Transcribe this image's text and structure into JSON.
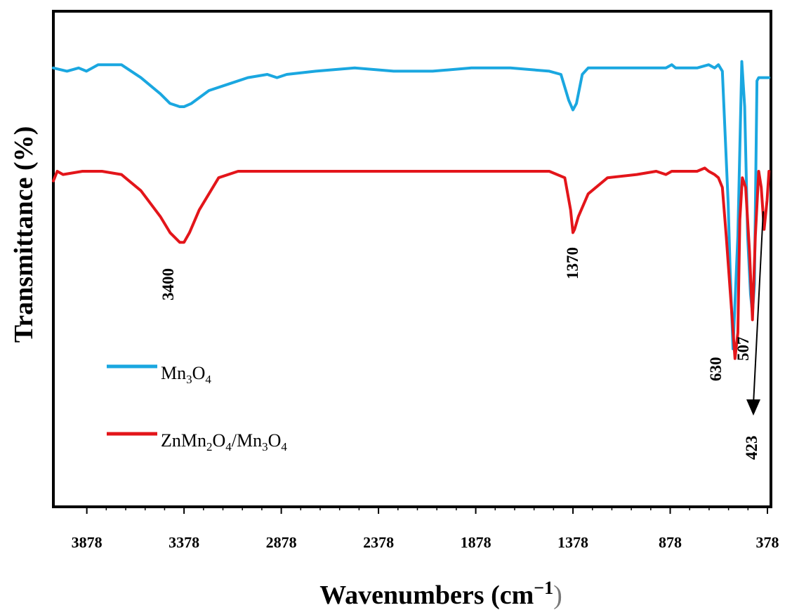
{
  "chart_data": {
    "type": "line",
    "xlabel": "Wavenumbers (cm",
    "xlabel_sup": "−1",
    "xlabel_close": ")",
    "ylabel": "Transmittance (%)",
    "xlim": [
      4050,
      360
    ],
    "x_reversed": true,
    "yticks_shown": false,
    "grid": false,
    "legend_position": "left-center",
    "xticks": [
      3878,
      3378,
      2878,
      2378,
      1878,
      1378,
      878,
      378
    ],
    "xtick_labels": [
      "3878",
      "3378",
      "2878",
      "2378",
      "1878",
      "1378",
      "878",
      "378"
    ],
    "series": [
      {
        "name": "Mn3O4",
        "legend": {
          "base1": "Mn",
          "sub1": "3",
          "base2": "O",
          "sub2": "4"
        },
        "color": "#1aa7e0",
        "baseline": 0.92,
        "x": [
          4050,
          3980,
          3920,
          3880,
          3820,
          3700,
          3600,
          3500,
          3450,
          3400,
          3378,
          3340,
          3250,
          3150,
          3050,
          2950,
          2900,
          2850,
          2700,
          2500,
          2300,
          2100,
          1900,
          1700,
          1500,
          1440,
          1400,
          1378,
          1360,
          1330,
          1300,
          1200,
          1000,
          930,
          900,
          870,
          850,
          800,
          740,
          680,
          650,
          630,
          610,
          580,
          570,
          555,
          530,
          510,
          495,
          480,
          465,
          455,
          445,
          432,
          423,
          400,
          370
        ],
        "y": [
          0.92,
          0.91,
          0.92,
          0.91,
          0.93,
          0.93,
          0.89,
          0.84,
          0.81,
          0.8,
          0.8,
          0.81,
          0.85,
          0.87,
          0.89,
          0.9,
          0.89,
          0.9,
          0.91,
          0.92,
          0.91,
          0.91,
          0.92,
          0.92,
          0.91,
          0.9,
          0.82,
          0.79,
          0.81,
          0.9,
          0.92,
          0.92,
          0.92,
          0.92,
          0.92,
          0.93,
          0.92,
          0.92,
          0.92,
          0.93,
          0.92,
          0.93,
          0.91,
          0.5,
          0.3,
          0.05,
          0.4,
          0.94,
          0.8,
          0.4,
          0.22,
          0.16,
          0.25,
          0.88,
          0.89,
          0.89,
          0.89
        ]
      },
      {
        "name": "ZnMn2O4/Mn3O4",
        "legend": {
          "base1": "ZnMn",
          "sub1": "2",
          "base2": "O",
          "sub2": "4",
          "slash": "/Mn",
          "sub3": "3",
          "base3": "O",
          "sub4": "4"
        },
        "color": "#e3151a",
        "baseline": 0.6,
        "x": [
          4050,
          4030,
          4000,
          3900,
          3800,
          3700,
          3600,
          3500,
          3450,
          3400,
          3378,
          3350,
          3300,
          3200,
          3100,
          2900,
          2700,
          2500,
          2300,
          2100,
          1900,
          1700,
          1500,
          1420,
          1390,
          1378,
          1370,
          1350,
          1300,
          1200,
          1050,
          950,
          900,
          870,
          860,
          800,
          760,
          740,
          700,
          680,
          650,
          630,
          610,
          590,
          560,
          545,
          530,
          520,
          507,
          490,
          470,
          455,
          440,
          423,
          410,
          395,
          380,
          370
        ],
        "y": [
          0.57,
          0.6,
          0.59,
          0.6,
          0.6,
          0.59,
          0.54,
          0.46,
          0.41,
          0.38,
          0.38,
          0.41,
          0.48,
          0.58,
          0.6,
          0.6,
          0.6,
          0.6,
          0.6,
          0.6,
          0.6,
          0.6,
          0.6,
          0.58,
          0.48,
          0.41,
          0.42,
          0.46,
          0.53,
          0.58,
          0.59,
          0.6,
          0.59,
          0.6,
          0.6,
          0.6,
          0.6,
          0.6,
          0.61,
          0.6,
          0.59,
          0.58,
          0.55,
          0.4,
          0.15,
          0.02,
          0.1,
          0.45,
          0.58,
          0.55,
          0.35,
          0.14,
          0.4,
          0.6,
          0.55,
          0.42,
          0.51,
          0.6
        ]
      }
    ],
    "annotations": [
      {
        "text": "3400",
        "x": 3400
      },
      {
        "text": "1370",
        "x": 1370
      },
      {
        "text": "630",
        "x": 630
      },
      {
        "text": "507",
        "x": 507
      },
      {
        "text": "423",
        "x": 423
      }
    ]
  }
}
